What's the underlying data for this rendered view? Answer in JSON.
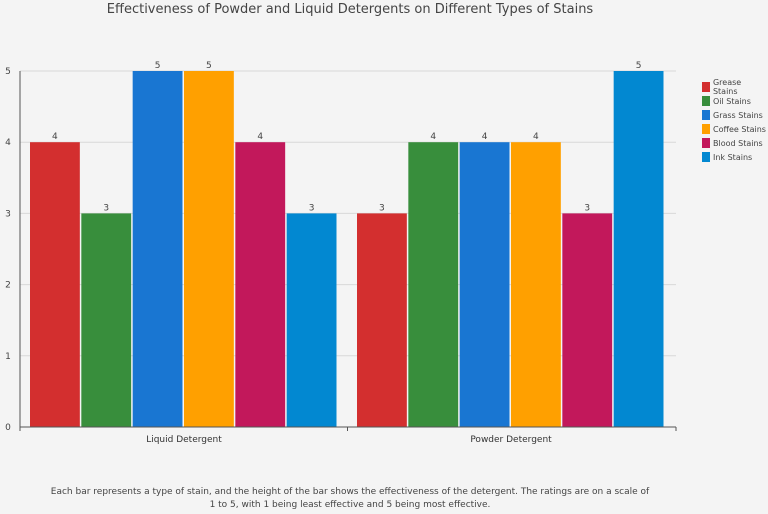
{
  "chart_data": {
    "type": "bar",
    "title": "Effectiveness of Powder and Liquid Detergents on Different Types of Stains",
    "categories": [
      "Liquid Detergent",
      "Powder Detergent"
    ],
    "series": [
      {
        "name": "Grease Stains",
        "values": [
          4,
          3
        ],
        "color": "#d32f2f"
      },
      {
        "name": "Oil Stains",
        "values": [
          3,
          4
        ],
        "color": "#388e3c"
      },
      {
        "name": "Grass Stains",
        "values": [
          5,
          4
        ],
        "color": "#1976d2"
      },
      {
        "name": "Coffee Stains",
        "values": [
          5,
          4
        ],
        "color": "#ffa000"
      },
      {
        "name": "Blood Stains",
        "values": [
          4,
          3
        ],
        "color": "#c2185b"
      },
      {
        "name": "Ink Stains",
        "values": [
          3,
          5
        ],
        "color": "#0288d1"
      }
    ],
    "ylim": [
      0,
      5
    ],
    "yticks": [
      0,
      1,
      2,
      3,
      4,
      5
    ],
    "grid": true,
    "legend": "right",
    "xlabel": "",
    "ylabel": ""
  },
  "caption": "Each bar represents a type of stain, and the height of the bar shows the effectiveness of the detergent. The ratings are on a scale of 1 to 5, with 1 being least effective and 5 being most effective."
}
